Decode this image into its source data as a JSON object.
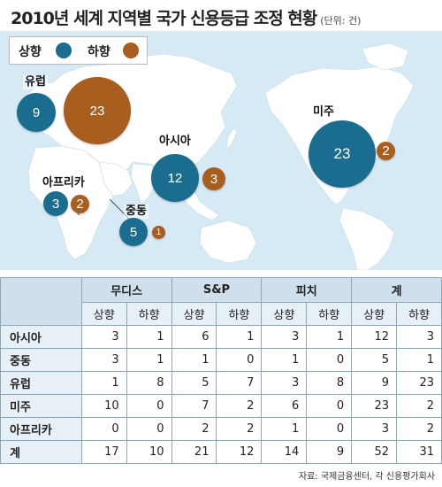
{
  "title": "2010년 세계 지역별 국가 신용등급 조정 현황",
  "unit": "(단위: 건)",
  "legend": {
    "up_label": "상향",
    "down_label": "하향",
    "up_color": "#1a6d8e",
    "down_color": "#a85e1e"
  },
  "map_bubbles": [
    {
      "region": "유럽",
      "up": "9",
      "down": "23"
    },
    {
      "region": "아시아",
      "up": "12",
      "down": "3"
    },
    {
      "region": "아프리카",
      "up": "3",
      "down": "2"
    },
    {
      "region": "중동",
      "up": "5",
      "down": "1"
    },
    {
      "region": "미주",
      "up": "23",
      "down": "2"
    }
  ],
  "table": {
    "agencies": [
      "무디스",
      "S&P",
      "피치",
      "계"
    ],
    "sub_headers": [
      "상향",
      "하향"
    ],
    "rows": [
      {
        "label": "아시아",
        "values": [
          "3",
          "1",
          "6",
          "1",
          "3",
          "1",
          "12",
          "3"
        ]
      },
      {
        "label": "중동",
        "values": [
          "3",
          "1",
          "1",
          "0",
          "1",
          "0",
          "5",
          "1"
        ]
      },
      {
        "label": "유럽",
        "values": [
          "1",
          "8",
          "5",
          "7",
          "3",
          "8",
          "9",
          "23"
        ]
      },
      {
        "label": "미주",
        "values": [
          "10",
          "0",
          "7",
          "2",
          "6",
          "0",
          "23",
          "2"
        ]
      },
      {
        "label": "아프리카",
        "values": [
          "0",
          "0",
          "2",
          "2",
          "1",
          "0",
          "3",
          "2"
        ]
      },
      {
        "label": "계",
        "values": [
          "17",
          "10",
          "21",
          "12",
          "14",
          "9",
          "52",
          "31"
        ]
      }
    ]
  },
  "source": "자료: 국제금융센터, 각 신용평가회사"
}
